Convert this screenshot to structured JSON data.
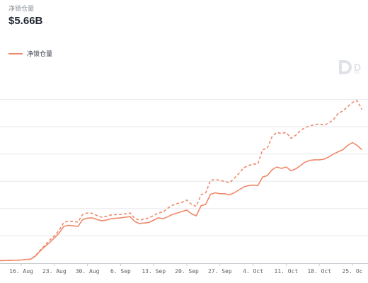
{
  "header": {
    "metric_label": "净锁仓量",
    "metric_value": "$5.66B"
  },
  "watermark": {
    "text": "D",
    "sub": "Yo"
  },
  "colors": {
    "series": "#f0886a",
    "grid": "#e6e8eb",
    "tick": "#5a5f68"
  },
  "chart_data": {
    "type": "line",
    "title": "",
    "xlabel": "",
    "ylabel": "",
    "grid": true,
    "legend_placement": "top-left",
    "x_ticks": [
      "16. Aug",
      "23. Aug",
      "30. Aug",
      "6. Sep",
      "13. Sep",
      "20. Sep",
      "27. Sep",
      "4. Oct",
      "11. Oct",
      "18. Oct",
      "25. Oc"
    ],
    "x_range": [
      "2020-08-10",
      "2020-10-27"
    ],
    "ylim": [
      0,
      6.7
    ],
    "series": [
      {
        "name": "净锁仓量",
        "style": "solid",
        "points": [
          [
            "2020-08-10",
            0.08
          ],
          [
            "2020-08-12",
            0.09
          ],
          [
            "2020-08-14",
            0.1
          ],
          [
            "2020-08-16",
            0.11
          ],
          [
            "2020-08-18",
            0.14
          ],
          [
            "2020-08-19",
            0.25
          ],
          [
            "2020-08-20",
            0.42
          ],
          [
            "2020-08-21",
            0.58
          ],
          [
            "2020-08-22",
            0.72
          ],
          [
            "2020-08-23",
            0.88
          ],
          [
            "2020-08-24",
            1.05
          ],
          [
            "2020-08-25",
            1.28
          ],
          [
            "2020-08-26",
            1.32
          ],
          [
            "2020-08-27",
            1.3
          ],
          [
            "2020-08-28",
            1.28
          ],
          [
            "2020-08-29",
            1.52
          ],
          [
            "2020-08-30",
            1.57
          ],
          [
            "2020-08-31",
            1.58
          ],
          [
            "2020-09-01",
            1.52
          ],
          [
            "2020-09-02",
            1.48
          ],
          [
            "2020-09-03",
            1.5
          ],
          [
            "2020-09-04",
            1.55
          ],
          [
            "2020-09-06",
            1.58
          ],
          [
            "2020-09-07",
            1.6
          ],
          [
            "2020-09-08",
            1.62
          ],
          [
            "2020-09-09",
            1.45
          ],
          [
            "2020-09-10",
            1.38
          ],
          [
            "2020-09-11",
            1.4
          ],
          [
            "2020-09-12",
            1.42
          ],
          [
            "2020-09-13",
            1.5
          ],
          [
            "2020-09-14",
            1.58
          ],
          [
            "2020-09-15",
            1.55
          ],
          [
            "2020-09-16",
            1.62
          ],
          [
            "2020-09-17",
            1.7
          ],
          [
            "2020-09-18",
            1.75
          ],
          [
            "2020-09-19",
            1.8
          ],
          [
            "2020-09-20",
            1.85
          ],
          [
            "2020-09-21",
            1.72
          ],
          [
            "2020-09-22",
            1.65
          ],
          [
            "2020-09-23",
            2.0
          ],
          [
            "2020-09-24",
            2.05
          ],
          [
            "2020-09-25",
            2.4
          ],
          [
            "2020-09-26",
            2.45
          ],
          [
            "2020-09-27",
            2.42
          ],
          [
            "2020-09-28",
            2.42
          ],
          [
            "2020-09-29",
            2.38
          ],
          [
            "2020-09-30",
            2.45
          ],
          [
            "2020-10-01",
            2.55
          ],
          [
            "2020-10-02",
            2.65
          ],
          [
            "2020-10-03",
            2.7
          ],
          [
            "2020-10-04",
            2.72
          ],
          [
            "2020-10-05",
            2.7
          ],
          [
            "2020-10-06",
            3.0
          ],
          [
            "2020-10-07",
            3.05
          ],
          [
            "2020-10-08",
            3.25
          ],
          [
            "2020-10-09",
            3.35
          ],
          [
            "2020-10-10",
            3.3
          ],
          [
            "2020-10-11",
            3.35
          ],
          [
            "2020-10-12",
            3.22
          ],
          [
            "2020-10-13",
            3.28
          ],
          [
            "2020-10-14",
            3.4
          ],
          [
            "2020-10-15",
            3.52
          ],
          [
            "2020-10-16",
            3.58
          ],
          [
            "2020-10-17",
            3.6
          ],
          [
            "2020-10-18",
            3.6
          ],
          [
            "2020-10-19",
            3.62
          ],
          [
            "2020-10-20",
            3.7
          ],
          [
            "2020-10-21",
            3.8
          ],
          [
            "2020-10-22",
            3.88
          ],
          [
            "2020-10-23",
            3.95
          ],
          [
            "2020-10-24",
            4.1
          ],
          [
            "2020-10-25",
            4.2
          ],
          [
            "2020-10-26",
            4.1
          ],
          [
            "2020-10-27",
            3.95
          ]
        ]
      },
      {
        "style": "dashed",
        "points": [
          [
            "2020-08-10",
            0.08
          ],
          [
            "2020-08-12",
            0.09
          ],
          [
            "2020-08-14",
            0.1
          ],
          [
            "2020-08-16",
            0.11
          ],
          [
            "2020-08-18",
            0.14
          ],
          [
            "2020-08-19",
            0.26
          ],
          [
            "2020-08-20",
            0.45
          ],
          [
            "2020-08-21",
            0.62
          ],
          [
            "2020-08-22",
            0.8
          ],
          [
            "2020-08-23",
            0.95
          ],
          [
            "2020-08-24",
            1.15
          ],
          [
            "2020-08-25",
            1.42
          ],
          [
            "2020-08-26",
            1.46
          ],
          [
            "2020-08-27",
            1.45
          ],
          [
            "2020-08-28",
            1.43
          ],
          [
            "2020-08-29",
            1.7
          ],
          [
            "2020-08-30",
            1.75
          ],
          [
            "2020-08-31",
            1.74
          ],
          [
            "2020-09-01",
            1.66
          ],
          [
            "2020-09-02",
            1.6
          ],
          [
            "2020-09-03",
            1.63
          ],
          [
            "2020-09-04",
            1.68
          ],
          [
            "2020-09-06",
            1.7
          ],
          [
            "2020-09-07",
            1.72
          ],
          [
            "2020-09-08",
            1.75
          ],
          [
            "2020-09-09",
            1.56
          ],
          [
            "2020-09-10",
            1.5
          ],
          [
            "2020-09-11",
            1.53
          ],
          [
            "2020-09-12",
            1.58
          ],
          [
            "2020-09-13",
            1.66
          ],
          [
            "2020-09-14",
            1.75
          ],
          [
            "2020-09-15",
            1.78
          ],
          [
            "2020-09-16",
            1.92
          ],
          [
            "2020-09-17",
            2.02
          ],
          [
            "2020-09-18",
            2.08
          ],
          [
            "2020-09-19",
            2.12
          ],
          [
            "2020-09-20",
            2.2
          ],
          [
            "2020-09-21",
            2.05
          ],
          [
            "2020-09-22",
            1.98
          ],
          [
            "2020-09-23",
            2.38
          ],
          [
            "2020-09-24",
            2.45
          ],
          [
            "2020-09-25",
            2.88
          ],
          [
            "2020-09-26",
            2.92
          ],
          [
            "2020-09-27",
            2.88
          ],
          [
            "2020-09-28",
            2.85
          ],
          [
            "2020-09-29",
            2.8
          ],
          [
            "2020-09-30",
            2.95
          ],
          [
            "2020-10-01",
            3.12
          ],
          [
            "2020-10-02",
            3.32
          ],
          [
            "2020-10-03",
            3.4
          ],
          [
            "2020-10-04",
            3.45
          ],
          [
            "2020-10-05",
            3.45
          ],
          [
            "2020-10-06",
            3.95
          ],
          [
            "2020-10-07",
            4.0
          ],
          [
            "2020-10-08",
            4.4
          ],
          [
            "2020-10-09",
            4.55
          ],
          [
            "2020-10-10",
            4.52
          ],
          [
            "2020-10-11",
            4.55
          ],
          [
            "2020-10-12",
            4.35
          ],
          [
            "2020-10-13",
            4.45
          ],
          [
            "2020-10-14",
            4.62
          ],
          [
            "2020-10-15",
            4.72
          ],
          [
            "2020-10-16",
            4.78
          ],
          [
            "2020-10-17",
            4.82
          ],
          [
            "2020-10-18",
            4.85
          ],
          [
            "2020-10-19",
            4.8
          ],
          [
            "2020-10-20",
            4.88
          ],
          [
            "2020-10-21",
            5.0
          ],
          [
            "2020-10-22",
            5.22
          ],
          [
            "2020-10-23",
            5.3
          ],
          [
            "2020-10-24",
            5.45
          ],
          [
            "2020-10-25",
            5.6
          ],
          [
            "2020-10-26",
            5.66
          ],
          [
            "2020-10-27",
            5.35
          ]
        ]
      }
    ]
  }
}
